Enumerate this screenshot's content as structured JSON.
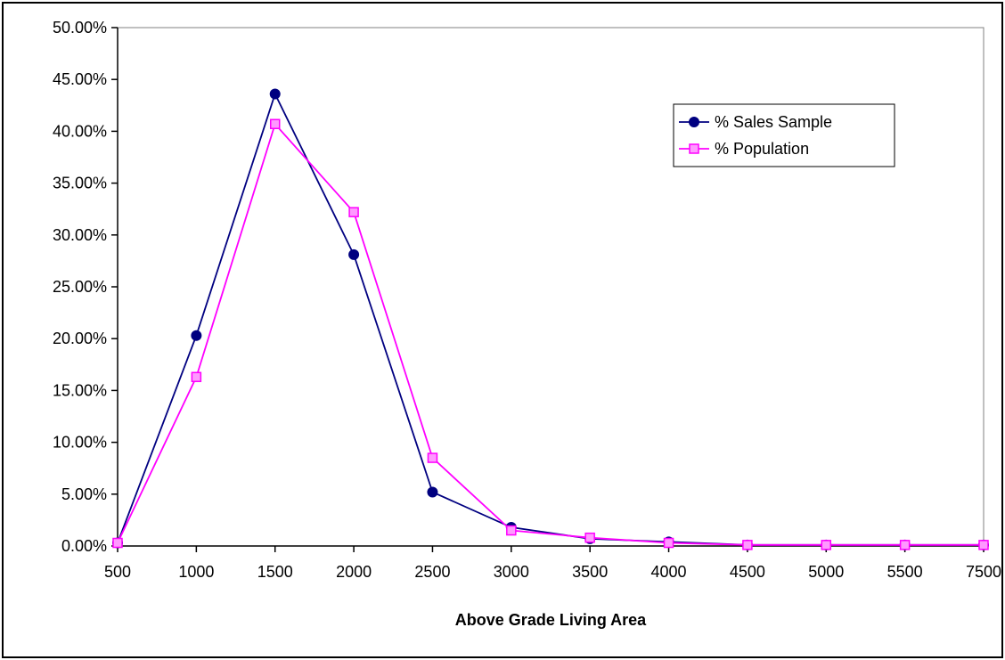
{
  "chart_data": {
    "type": "line",
    "title": "",
    "xlabel": "Above Grade Living Area",
    "ylabel": "",
    "categories": [
      "500",
      "1000",
      "1500",
      "2000",
      "2500",
      "3000",
      "3500",
      "4000",
      "4500",
      "5000",
      "5500",
      "7500"
    ],
    "yticks": [
      "0.00%",
      "5.00%",
      "10.00%",
      "15.00%",
      "20.00%",
      "25.00%",
      "30.00%",
      "35.00%",
      "40.00%",
      "45.00%",
      "50.00%"
    ],
    "ylim": [
      0,
      0.5
    ],
    "grid": false,
    "legend_position": "top-right",
    "series": [
      {
        "name": "% Sales Sample",
        "color": "#000080",
        "marker": "circle",
        "values": [
          0.003,
          0.203,
          0.436,
          0.281,
          0.052,
          0.018,
          0.007,
          0.004,
          0.001,
          0.001,
          0.001,
          0.001
        ]
      },
      {
        "name": "% Population",
        "color": "#ff00ff",
        "marker": "square",
        "values": [
          0.003,
          0.163,
          0.407,
          0.322,
          0.085,
          0.015,
          0.008,
          0.003,
          0.001,
          0.001,
          0.001,
          0.001
        ]
      }
    ]
  }
}
